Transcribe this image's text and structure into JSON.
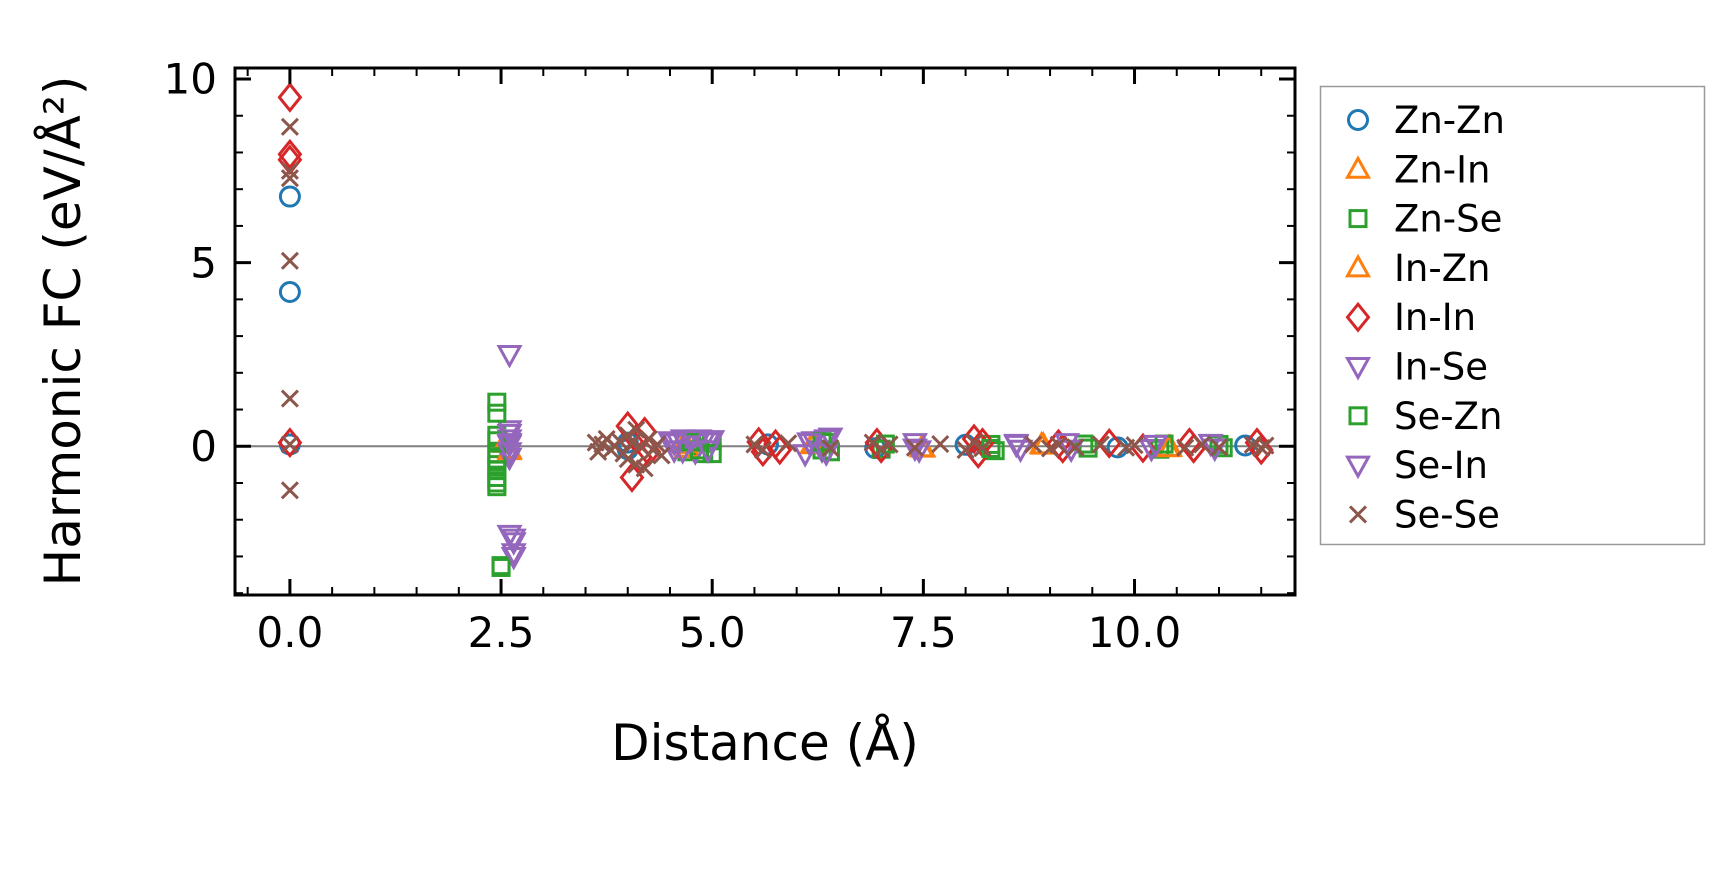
{
  "chart_data": {
    "type": "scatter",
    "title": "",
    "xlabel": "Distance (Å)",
    "ylabel": "Harmonic FC (eV/Å²)",
    "xlim": [
      -0.65,
      11.9
    ],
    "ylim": [
      -4.05,
      10.3
    ],
    "grid": false,
    "legend_position": "outside-right",
    "x_ticks": {
      "values": [
        0,
        2.5,
        5,
        7.5,
        10
      ],
      "labels": [
        "0.0",
        "2.5",
        "5.0",
        "7.5",
        "10.0"
      ],
      "minor_step": 0.5
    },
    "y_ticks": {
      "values": [
        0,
        5,
        10
      ],
      "labels": [
        "0",
        "5",
        "10"
      ],
      "minor_step": 1
    },
    "zero_line": {
      "y": 0,
      "color": "#7f7f7f"
    },
    "colors": {
      "axis": "#000000",
      "legend_border": "#999999",
      "background": "#ffffff"
    },
    "series": [
      {
        "name": "Zn-Zn",
        "marker": "circle",
        "color": "#1f77b4",
        "points": [
          [
            0,
            6.8
          ],
          [
            0,
            4.2
          ],
          [
            0,
            0.05
          ],
          [
            4.0,
            0.1
          ],
          [
            4.0,
            -0.08
          ],
          [
            5.66,
            0.05
          ],
          [
            6.93,
            -0.05
          ],
          [
            8.0,
            0.04
          ],
          [
            9.8,
            -0.03
          ],
          [
            11.31,
            0.02
          ]
        ]
      },
      {
        "name": "Zn-In",
        "marker": "triangle-up",
        "color": "#ff7f0e",
        "points": [
          [
            2.55,
            0.08
          ],
          [
            2.6,
            -0.08
          ],
          [
            4.67,
            0.05
          ],
          [
            4.7,
            -0.05
          ],
          [
            6.18,
            0.04
          ],
          [
            7.48,
            -0.04
          ],
          [
            8.92,
            0.03
          ],
          [
            10.42,
            -0.03
          ]
        ]
      },
      {
        "name": "Zn-Se",
        "marker": "square",
        "color": "#2ca02c",
        "points": [
          [
            2.45,
            1.2
          ],
          [
            2.45,
            0.3
          ],
          [
            2.45,
            -0.2
          ],
          [
            2.45,
            -0.5
          ],
          [
            2.45,
            -0.85
          ],
          [
            2.45,
            -1.1
          ],
          [
            2.5,
            -3.3
          ],
          [
            4.7,
            -0.15
          ],
          [
            4.8,
            0.1
          ],
          [
            4.9,
            -0.2
          ],
          [
            5.0,
            0.15
          ],
          [
            6.3,
            -0.1
          ],
          [
            6.35,
            0.1
          ],
          [
            7.0,
            -0.08
          ],
          [
            8.3,
            0.05
          ],
          [
            8.35,
            -0.12
          ],
          [
            9.4,
            0.06
          ],
          [
            10.3,
            -0.08
          ],
          [
            11.0,
            0.05
          ]
        ]
      },
      {
        "name": "In-Zn",
        "marker": "triangle-up",
        "color": "#ff7f0e",
        "points": [
          [
            2.55,
            0.12
          ],
          [
            2.6,
            -0.12
          ],
          [
            4.67,
            0.08
          ],
          [
            4.72,
            -0.06
          ],
          [
            6.2,
            0.05
          ],
          [
            7.5,
            -0.05
          ],
          [
            8.9,
            0.04
          ],
          [
            10.4,
            -0.04
          ]
        ]
      },
      {
        "name": "In-In",
        "marker": "diamond",
        "color": "#d62728",
        "points": [
          [
            0,
            9.5
          ],
          [
            0,
            7.95
          ],
          [
            0,
            7.8
          ],
          [
            0,
            0.1
          ],
          [
            4.0,
            0.55
          ],
          [
            4.05,
            -0.85
          ],
          [
            4.1,
            0.2
          ],
          [
            4.15,
            -0.3
          ],
          [
            4.2,
            0.4
          ],
          [
            4.25,
            -0.15
          ],
          [
            5.55,
            0.12
          ],
          [
            5.6,
            -0.15
          ],
          [
            5.75,
            0.06
          ],
          [
            5.8,
            -0.1
          ],
          [
            6.95,
            0.1
          ],
          [
            7.0,
            -0.06
          ],
          [
            8.1,
            0.2
          ],
          [
            8.15,
            -0.2
          ],
          [
            8.2,
            0.1
          ],
          [
            9.1,
            0.06
          ],
          [
            9.15,
            -0.06
          ],
          [
            9.7,
            0.08
          ],
          [
            10.1,
            -0.05
          ],
          [
            10.65,
            0.1
          ],
          [
            10.7,
            -0.06
          ],
          [
            11.45,
            0.1
          ],
          [
            11.5,
            -0.1
          ]
        ]
      },
      {
        "name": "In-Se",
        "marker": "triangle-down",
        "color": "#9467bd",
        "points": [
          [
            2.6,
            2.5
          ],
          [
            2.6,
            0.45
          ],
          [
            2.6,
            0.2
          ],
          [
            2.6,
            0.05
          ],
          [
            2.6,
            -0.3
          ],
          [
            2.6,
            -2.4
          ],
          [
            2.65,
            -2.6
          ],
          [
            2.65,
            -3.0
          ],
          [
            4.5,
            0.15
          ],
          [
            4.55,
            -0.1
          ],
          [
            4.6,
            0.1
          ],
          [
            4.65,
            0.2
          ],
          [
            4.75,
            0.15
          ],
          [
            4.8,
            -0.15
          ],
          [
            4.85,
            0.2
          ],
          [
            4.9,
            0.15
          ],
          [
            4.95,
            0.12
          ],
          [
            5.0,
            0.18
          ],
          [
            6.1,
            -0.2
          ],
          [
            6.15,
            0.12
          ],
          [
            6.2,
            0.15
          ],
          [
            6.3,
            -0.1
          ],
          [
            6.35,
            0.2
          ],
          [
            6.4,
            0.25
          ],
          [
            7.4,
            0.1
          ],
          [
            7.45,
            -0.1
          ],
          [
            8.6,
            0.08
          ],
          [
            8.65,
            -0.08
          ],
          [
            9.2,
            0.1
          ],
          [
            10.2,
            -0.06
          ],
          [
            10.9,
            0.08
          ]
        ]
      },
      {
        "name": "Se-Zn",
        "marker": "square",
        "color": "#2ca02c",
        "points": [
          [
            2.45,
            0.9
          ],
          [
            2.45,
            0.15
          ],
          [
            2.45,
            -0.35
          ],
          [
            2.45,
            -0.65
          ],
          [
            2.45,
            -1.0
          ],
          [
            2.5,
            -3.25
          ],
          [
            4.75,
            0.12
          ],
          [
            4.85,
            -0.1
          ],
          [
            5.0,
            -0.2
          ],
          [
            6.3,
            0.12
          ],
          [
            6.4,
            -0.15
          ],
          [
            7.05,
            0.06
          ],
          [
            8.3,
            -0.06
          ],
          [
            9.45,
            -0.05
          ],
          [
            10.35,
            0.06
          ],
          [
            11.05,
            -0.04
          ]
        ]
      },
      {
        "name": "Se-In",
        "marker": "triangle-down",
        "color": "#9467bd",
        "points": [
          [
            2.6,
            0.35
          ],
          [
            2.6,
            0.1
          ],
          [
            2.6,
            -0.15
          ],
          [
            2.65,
            -2.5
          ],
          [
            2.65,
            -2.9
          ],
          [
            4.55,
            0.1
          ],
          [
            4.65,
            -0.12
          ],
          [
            4.75,
            0.18
          ],
          [
            4.95,
            -0.1
          ],
          [
            6.15,
            0.1
          ],
          [
            6.35,
            -0.18
          ],
          [
            7.4,
            -0.05
          ],
          [
            8.6,
            0.05
          ],
          [
            9.25,
            -0.08
          ],
          [
            10.25,
            0.05
          ],
          [
            10.95,
            -0.05
          ]
        ]
      },
      {
        "name": "Se-Se",
        "marker": "x",
        "color": "#8c564b",
        "points": [
          [
            0,
            8.7
          ],
          [
            0,
            7.5
          ],
          [
            0,
            7.3
          ],
          [
            0,
            5.05
          ],
          [
            0,
            1.3
          ],
          [
            0,
            0.05
          ],
          [
            0,
            -1.2
          ],
          [
            3.62,
            0.1
          ],
          [
            3.65,
            -0.15
          ],
          [
            3.7,
            0.05
          ],
          [
            3.75,
            0.2
          ],
          [
            3.8,
            -0.1
          ],
          [
            3.85,
            0.0
          ],
          [
            3.9,
            0.15
          ],
          [
            3.95,
            -0.2
          ],
          [
            4.0,
            0.3
          ],
          [
            4.0,
            -0.35
          ],
          [
            4.05,
            0.1
          ],
          [
            4.1,
            -0.5
          ],
          [
            4.1,
            0.45
          ],
          [
            4.15,
            0.0
          ],
          [
            4.2,
            -0.6
          ],
          [
            4.25,
            0.2
          ],
          [
            4.3,
            -0.1
          ],
          [
            4.35,
            0.05
          ],
          [
            4.4,
            -0.25
          ],
          [
            5.5,
            0.05
          ],
          [
            5.6,
            -0.1
          ],
          [
            5.9,
            0.08
          ],
          [
            6.4,
            -0.05
          ],
          [
            6.9,
            0.1
          ],
          [
            7.0,
            -0.08
          ],
          [
            7.1,
            0.05
          ],
          [
            7.4,
            -0.04
          ],
          [
            7.7,
            0.06
          ],
          [
            8.0,
            -0.1
          ],
          [
            8.1,
            0.1
          ],
          [
            8.2,
            -0.05
          ],
          [
            8.8,
            0.05
          ],
          [
            9.0,
            -0.06
          ],
          [
            9.1,
            0.04
          ],
          [
            9.3,
            -0.03
          ],
          [
            9.6,
            0.05
          ],
          [
            9.9,
            -0.04
          ],
          [
            10.0,
            0.03
          ],
          [
            10.6,
            -0.04
          ],
          [
            10.8,
            0.05
          ],
          [
            11.0,
            -0.03
          ],
          [
            11.4,
            0.04
          ],
          [
            11.5,
            -0.05
          ],
          [
            11.55,
            0.02
          ]
        ]
      }
    ]
  }
}
